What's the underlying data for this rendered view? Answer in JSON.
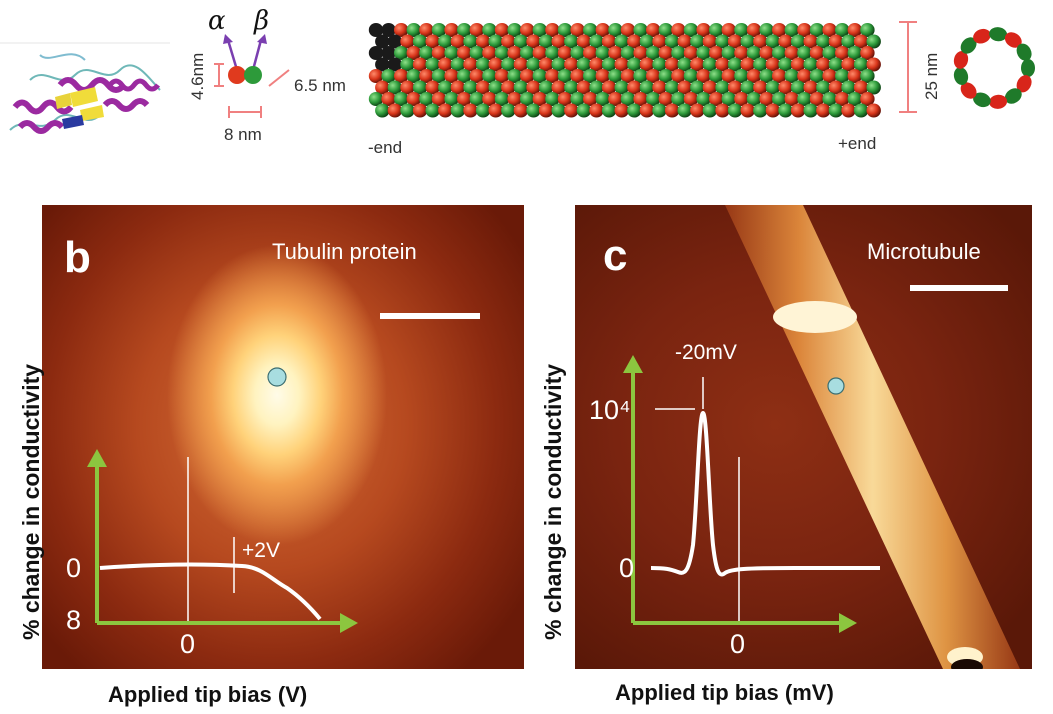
{
  "top": {
    "alpha": "α",
    "beta": "β",
    "dim_height": "4.6nm",
    "dim_width": "8 nm",
    "dim_pitch": "6.5 nm",
    "dim_diameter": "25 nm",
    "minus_end": "-end",
    "plus_end": "+end"
  },
  "panel_b": {
    "letter": "b",
    "title": "Tubulin protein",
    "ylabel": "% change in conductivity",
    "xlabel": "Applied tip bias (V)",
    "y_ticks": [
      "0",
      "8"
    ],
    "x_ticks": [
      "0"
    ],
    "annotation": "+2V"
  },
  "panel_c": {
    "letter": "c",
    "title": "Microtubule",
    "ylabel": "% change in conductivity",
    "xlabel": "Applied tip bias (mV)",
    "y_ticks": [
      "0",
      "10⁴"
    ],
    "x_ticks": [
      "0"
    ],
    "annotation": "-20mV"
  },
  "colors": {
    "axis": "#8cc63f",
    "alpha_subunit": "#e03a1e",
    "beta_subunit": "#2d9a3a",
    "probe_dot": "#a8dde0",
    "dimension_marker": "#f08080"
  }
}
